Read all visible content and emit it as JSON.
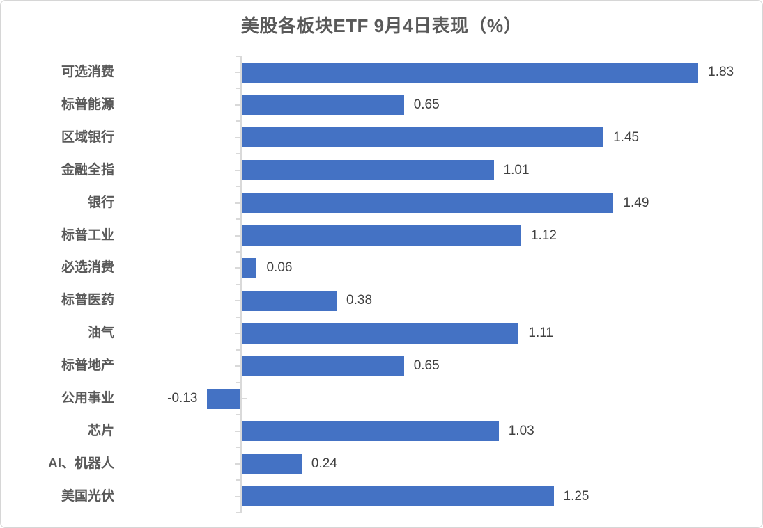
{
  "chart_data": {
    "type": "bar",
    "orientation": "horizontal",
    "title": "美股各板块ETF 9月4日表现（%）",
    "categories": [
      "可选消费",
      "标普能源",
      "区域银行",
      "金融全指",
      "银行",
      "标普工业",
      "必选消费",
      "标普医药",
      "油气",
      "标普地产",
      "公用事业",
      "芯片",
      "AI、机器人",
      "美国光伏"
    ],
    "values": [
      1.83,
      0.65,
      1.45,
      1.01,
      1.49,
      1.12,
      0.06,
      0.38,
      1.11,
      0.65,
      -0.13,
      1.03,
      0.24,
      1.25
    ],
    "value_labels": [
      "1.83",
      "0.65",
      "1.45",
      "1.01",
      "1.49",
      "1.12",
      "0.06",
      "0.38",
      "1.11",
      "0.65",
      "-0.13",
      "1.03",
      "0.24",
      "1.25"
    ],
    "xlabel": "",
    "ylabel": "",
    "xlim": [
      -0.5,
      2.0
    ],
    "grid": "off",
    "legend": "none",
    "colors": {
      "bar": "#4472C4",
      "axis": "#D9D9D9",
      "title": "#595959",
      "category_label": "#595959",
      "value_label": "#404040",
      "background": "#FFFFFF"
    }
  }
}
